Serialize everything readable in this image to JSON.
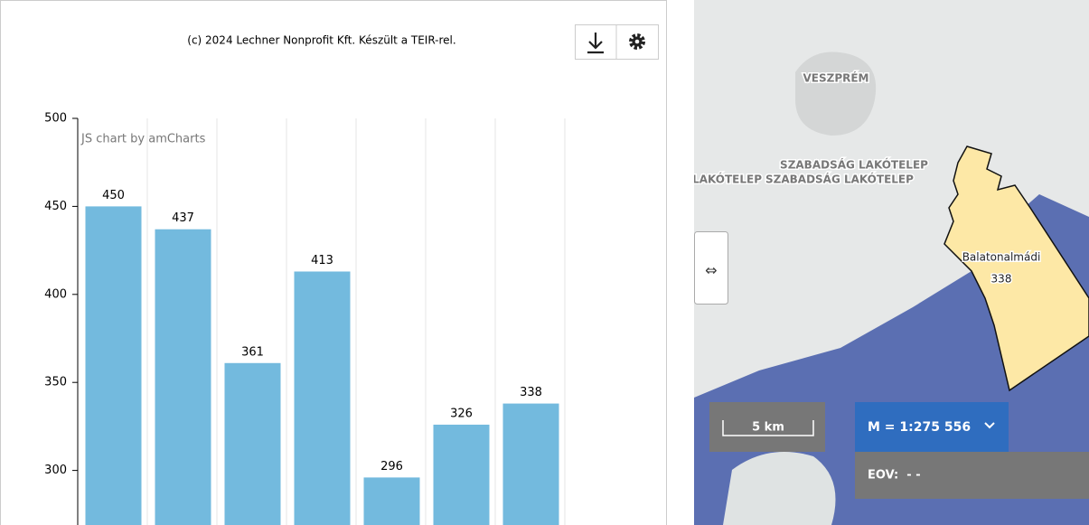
{
  "chart_data": {
    "type": "bar",
    "title": "(c) 2024 Lechner Nonprofit Kft. Készült a TEIR-rel.",
    "credit": "JS chart by amCharts",
    "categories": [
      null,
      null,
      null,
      null,
      null,
      null,
      null
    ],
    "values": [
      450,
      437,
      361,
      413,
      296,
      326,
      338
    ],
    "color": "#73bade",
    "ylim": [
      269,
      500
    ],
    "yticks": [
      300,
      350,
      400,
      450,
      500
    ],
    "grid": true
  },
  "map": {
    "labels": [
      "VESZPRÉM",
      "SZABADSÁG LAKÓTELEP",
      "SZABADSÁG LAKÓTELEP",
      "SZABADSÁG LAKÓTELEP"
    ],
    "region": {
      "name": "Balatonalmádi",
      "value": "338"
    },
    "scale": "5 km",
    "zoom": "M = 1:275 556",
    "eov": "EOV:  - -"
  }
}
